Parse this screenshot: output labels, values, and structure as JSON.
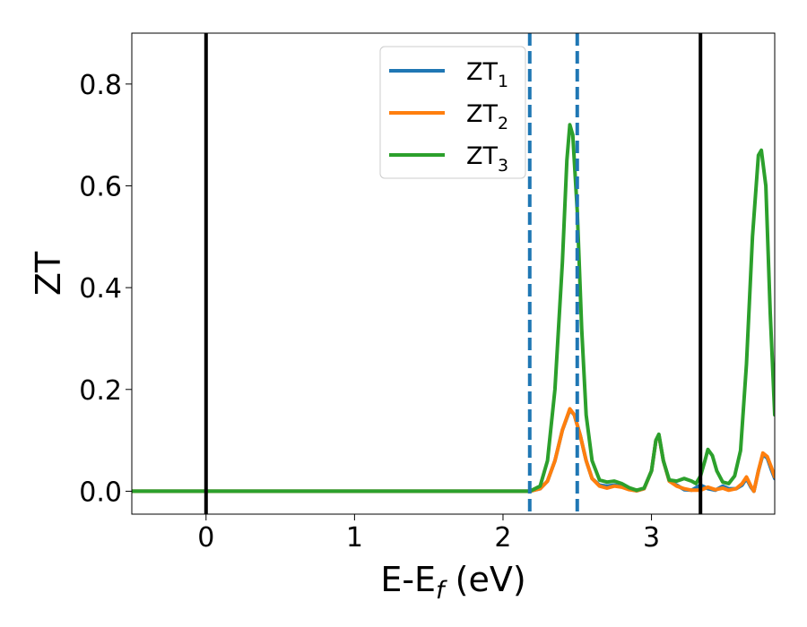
{
  "chart_data": {
    "type": "line",
    "xlabel": {
      "main": "E-E",
      "sub": "f",
      "unit": " (eV)"
    },
    "ylabel": "ZT",
    "xlim": [
      -0.5,
      3.83
    ],
    "ylim": [
      -0.045,
      0.9
    ],
    "xticks": [
      0,
      1,
      2,
      3
    ],
    "yticks": [
      0.0,
      0.2,
      0.4,
      0.6,
      0.8
    ],
    "ytick_labels": [
      "0.0",
      "0.2",
      "0.4",
      "0.6",
      "0.8"
    ],
    "grid": false,
    "legend_position": "top-center",
    "vlines": [
      {
        "x": 0.0,
        "style": "solid",
        "color": "#000000"
      },
      {
        "x": 3.33,
        "style": "solid",
        "color": "#000000"
      },
      {
        "x": 2.18,
        "style": "dashed",
        "color": "#1f77b4"
      },
      {
        "x": 2.5,
        "style": "dashed",
        "color": "#1f77b4"
      }
    ],
    "series": [
      {
        "name": "ZT",
        "sub": "1",
        "color": "#1f77b4",
        "points": [
          [
            -0.5,
            0
          ],
          [
            2.18,
            0
          ],
          [
            2.25,
            0.005
          ],
          [
            2.3,
            0.02
          ],
          [
            2.35,
            0.06
          ],
          [
            2.4,
            0.12
          ],
          [
            2.45,
            0.16
          ],
          [
            2.48,
            0.15
          ],
          [
            2.52,
            0.11
          ],
          [
            2.56,
            0.06
          ],
          [
            2.6,
            0.025
          ],
          [
            2.65,
            0.012
          ],
          [
            2.7,
            0.01
          ],
          [
            2.75,
            0.012
          ],
          [
            2.8,
            0.009
          ],
          [
            2.85,
            0.004
          ],
          [
            2.9,
            0.001
          ],
          [
            2.95,
            0.005
          ],
          [
            3.0,
            0.04
          ],
          [
            3.03,
            0.1
          ],
          [
            3.05,
            0.11
          ],
          [
            3.08,
            0.06
          ],
          [
            3.12,
            0.02
          ],
          [
            3.17,
            0.012
          ],
          [
            3.22,
            0.003
          ],
          [
            3.27,
            0.002
          ],
          [
            3.33,
            0.012
          ],
          [
            3.38,
            0.005
          ],
          [
            3.43,
            0.002
          ],
          [
            3.48,
            0.01
          ],
          [
            3.52,
            0.005
          ],
          [
            3.57,
            0.005
          ],
          [
            3.61,
            0.012
          ],
          [
            3.64,
            0.025
          ],
          [
            3.67,
            0.008
          ],
          [
            3.69,
            0.0
          ],
          [
            3.72,
            0.04
          ],
          [
            3.75,
            0.072
          ],
          [
            3.78,
            0.065
          ],
          [
            3.81,
            0.04
          ],
          [
            3.83,
            0.025
          ]
        ]
      },
      {
        "name": "ZT",
        "sub": "2",
        "color": "#ff7f0e",
        "points": [
          [
            -0.5,
            0
          ],
          [
            2.18,
            0
          ],
          [
            2.25,
            0.005
          ],
          [
            2.3,
            0.02
          ],
          [
            2.35,
            0.06
          ],
          [
            2.4,
            0.12
          ],
          [
            2.45,
            0.162
          ],
          [
            2.48,
            0.15
          ],
          [
            2.52,
            0.11
          ],
          [
            2.56,
            0.06
          ],
          [
            2.6,
            0.025
          ],
          [
            2.65,
            0.01
          ],
          [
            2.7,
            0.006
          ],
          [
            2.75,
            0.01
          ],
          [
            2.8,
            0.008
          ],
          [
            2.85,
            0.003
          ],
          [
            2.9,
            0.001
          ],
          [
            2.95,
            0.005
          ],
          [
            3.0,
            0.04
          ],
          [
            3.03,
            0.1
          ],
          [
            3.05,
            0.11
          ],
          [
            3.08,
            0.06
          ],
          [
            3.12,
            0.02
          ],
          [
            3.17,
            0.01
          ],
          [
            3.22,
            0.005
          ],
          [
            3.27,
            0.002
          ],
          [
            3.33,
            0.002
          ],
          [
            3.38,
            0.008
          ],
          [
            3.43,
            0.003
          ],
          [
            3.48,
            0.006
          ],
          [
            3.52,
            0.002
          ],
          [
            3.57,
            0.005
          ],
          [
            3.61,
            0.015
          ],
          [
            3.64,
            0.028
          ],
          [
            3.67,
            0.01
          ],
          [
            3.69,
            0.0
          ],
          [
            3.72,
            0.04
          ],
          [
            3.75,
            0.075
          ],
          [
            3.78,
            0.068
          ],
          [
            3.81,
            0.045
          ],
          [
            3.83,
            0.028
          ]
        ]
      },
      {
        "name": "ZT",
        "sub": "3",
        "color": "#2ca02c",
        "points": [
          [
            -0.5,
            0
          ],
          [
            2.18,
            0
          ],
          [
            2.25,
            0.01
          ],
          [
            2.3,
            0.06
          ],
          [
            2.35,
            0.2
          ],
          [
            2.4,
            0.45
          ],
          [
            2.43,
            0.65
          ],
          [
            2.45,
            0.72
          ],
          [
            2.47,
            0.7
          ],
          [
            2.5,
            0.55
          ],
          [
            2.53,
            0.32
          ],
          [
            2.56,
            0.15
          ],
          [
            2.6,
            0.06
          ],
          [
            2.65,
            0.022
          ],
          [
            2.7,
            0.018
          ],
          [
            2.75,
            0.02
          ],
          [
            2.8,
            0.015
          ],
          [
            2.85,
            0.007
          ],
          [
            2.9,
            0.002
          ],
          [
            2.95,
            0.006
          ],
          [
            3.0,
            0.04
          ],
          [
            3.03,
            0.1
          ],
          [
            3.05,
            0.112
          ],
          [
            3.08,
            0.06
          ],
          [
            3.12,
            0.022
          ],
          [
            3.17,
            0.02
          ],
          [
            3.22,
            0.025
          ],
          [
            3.27,
            0.02
          ],
          [
            3.3,
            0.015
          ],
          [
            3.33,
            0.03
          ],
          [
            3.36,
            0.06
          ],
          [
            3.38,
            0.082
          ],
          [
            3.41,
            0.07
          ],
          [
            3.44,
            0.04
          ],
          [
            3.48,
            0.018
          ],
          [
            3.52,
            0.015
          ],
          [
            3.56,
            0.03
          ],
          [
            3.6,
            0.08
          ],
          [
            3.64,
            0.25
          ],
          [
            3.68,
            0.5
          ],
          [
            3.72,
            0.66
          ],
          [
            3.74,
            0.67
          ],
          [
            3.77,
            0.6
          ],
          [
            3.8,
            0.35
          ],
          [
            3.83,
            0.15
          ]
        ]
      }
    ]
  }
}
